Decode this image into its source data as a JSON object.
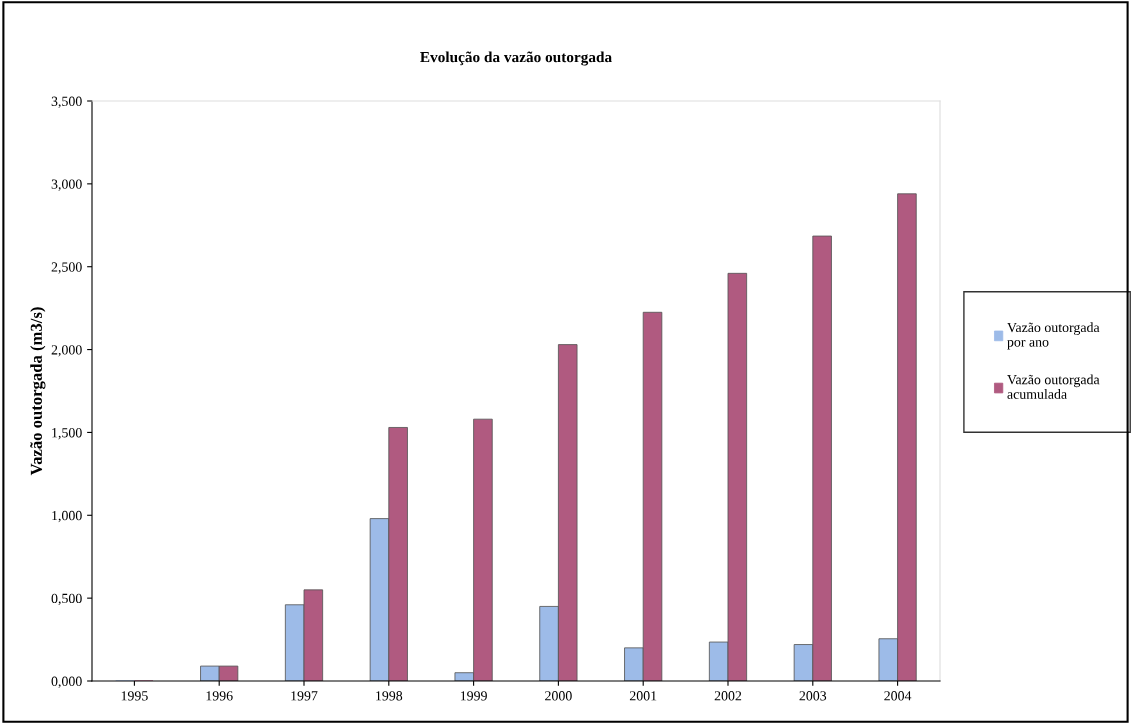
{
  "chart_data": {
    "type": "bar",
    "title": "Evolução da vazão outorgada",
    "ylabel": "Vazão outorgada (m3/s)",
    "categories": [
      "1995",
      "1996",
      "1997",
      "1998",
      "1999",
      "2000",
      "2001",
      "2002",
      "2003",
      "2004"
    ],
    "series": [
      {
        "name": "Vazão outorgada por ano",
        "color": "#9dbbe8",
        "values": [
          0,
          0.09,
          0.46,
          0.98,
          0.05,
          0.45,
          0.2,
          0.235,
          0.22,
          0.255
        ]
      },
      {
        "name": "Vazão outorgada acumulada",
        "color": "#b05a80",
        "values": [
          0,
          0.09,
          0.55,
          1.53,
          1.58,
          2.03,
          2.225,
          2.46,
          2.685,
          2.94
        ]
      }
    ],
    "ylim": [
      0,
      3.5
    ],
    "yticks": [
      {
        "value": 0,
        "label": "0,000"
      },
      {
        "value": 0.5,
        "label": "0,500"
      },
      {
        "value": 1,
        "label": "1,000"
      },
      {
        "value": 1.5,
        "label": "1,500"
      },
      {
        "value": 2,
        "label": "2,000"
      },
      {
        "value": 2.5,
        "label": "2,500"
      },
      {
        "value": 3,
        "label": "3,000"
      },
      {
        "value": 3.5,
        "label": "3,500"
      }
    ],
    "grid": false,
    "legend": "right"
  }
}
